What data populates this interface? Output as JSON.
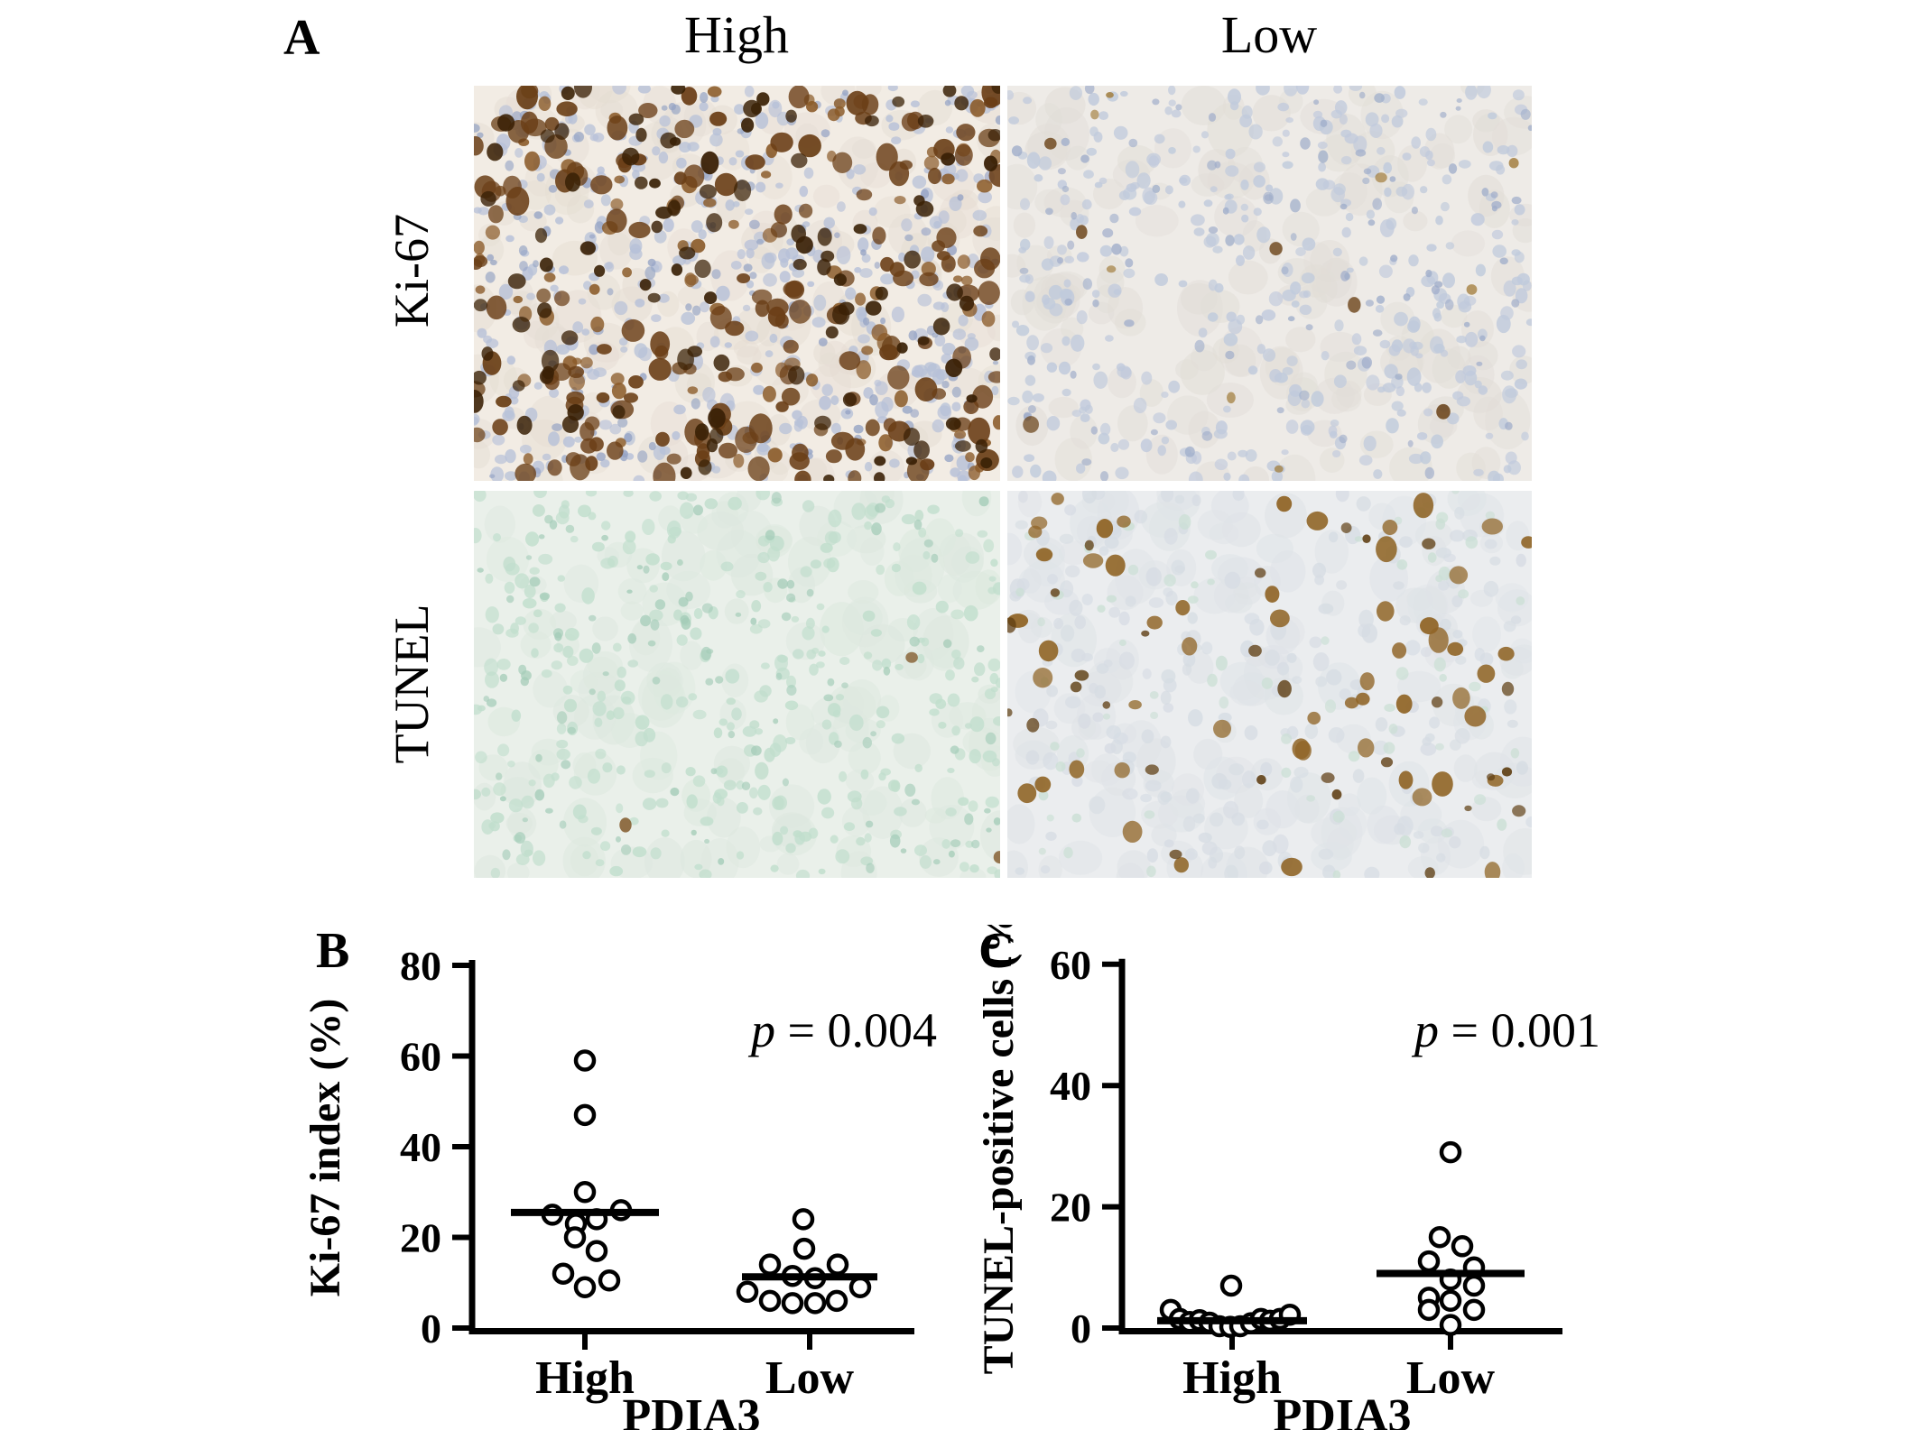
{
  "figure": {
    "panel_a": {
      "label": "A",
      "column_headers": [
        "High",
        "Low"
      ],
      "row_labels": [
        "Ki-67",
        "TUNEL"
      ],
      "micrographs": [
        {
          "id": "ki67-high",
          "row": "Ki-67",
          "column": "High",
          "description": "dense dark-brown Ki-67-positive nuclei with pale blue counterstain",
          "colors": {
            "background": "#f2ece4",
            "positive_stain": "#5a3414",
            "counterstain": "#b7c1d8"
          },
          "texture": {
            "bg": "#f2ece4",
            "seed": 11,
            "layers": [
              {
                "color": "#e4dcd2",
                "count": 150,
                "rmin": 12,
                "rmax": 26,
                "opacity": 0.5
              },
              {
                "color": "#b7c1d8",
                "count": 420,
                "rmin": 4,
                "rmax": 8,
                "opacity": 0.85
              },
              {
                "color": "#93a2c4",
                "count": 120,
                "rmin": 3,
                "rmax": 6,
                "opacity": 0.8
              },
              {
                "color": "#8a5a28",
                "count": 90,
                "rmin": 5,
                "rmax": 9,
                "opacity": 0.9
              },
              {
                "color": "#6b3f17",
                "count": 170,
                "rmin": 7,
                "rmax": 13,
                "opacity": 0.95
              },
              {
                "color": "#3a2106",
                "count": 110,
                "rmin": 6,
                "rmax": 10,
                "opacity": 0.95
              }
            ]
          }
        },
        {
          "id": "ki67-low",
          "row": "Ki-67",
          "column": "Low",
          "description": "sparse Ki-67-positive nuclei, mostly pale blue counterstained cells",
          "colors": {
            "background": "#eeebe7",
            "positive_stain": "#6b4419",
            "counterstain": "#c0cadc"
          },
          "texture": {
            "bg": "#eeebe7",
            "seed": 22,
            "layers": [
              {
                "color": "#e1ddd7",
                "count": 150,
                "rmin": 12,
                "rmax": 26,
                "opacity": 0.55
              },
              {
                "color": "#c0cadc",
                "count": 380,
                "rmin": 4,
                "rmax": 8,
                "opacity": 0.85
              },
              {
                "color": "#9fadca",
                "count": 100,
                "rmin": 3,
                "rmax": 6,
                "opacity": 0.8
              },
              {
                "color": "#a07a37",
                "count": 8,
                "rmin": 4,
                "rmax": 7,
                "opacity": 0.85
              },
              {
                "color": "#6b4419",
                "count": 6,
                "rmin": 6,
                "rmax": 9,
                "opacity": 0.95
              }
            ]
          }
        },
        {
          "id": "tunel-high",
          "row": "TUNEL",
          "column": "High",
          "description": "very few TUNEL-positive cells, pale methyl-green counterstain",
          "colors": {
            "background": "#eaf0ea",
            "positive_stain": "#7b5120",
            "counterstain": "#c1decd"
          },
          "texture": {
            "bg": "#eaf0ea",
            "seed": 33,
            "layers": [
              {
                "color": "#dde8df",
                "count": 150,
                "rmin": 12,
                "rmax": 26,
                "opacity": 0.6
              },
              {
                "color": "#c1decd",
                "count": 330,
                "rmin": 4,
                "rmax": 8,
                "opacity": 0.85
              },
              {
                "color": "#a4ccb8",
                "count": 110,
                "rmin": 3,
                "rmax": 6,
                "opacity": 0.8
              },
              {
                "color": "#7b5120",
                "count": 3,
                "rmin": 5,
                "rmax": 7,
                "opacity": 0.9
              }
            ]
          }
        },
        {
          "id": "tunel-low",
          "row": "TUNEL",
          "column": "Low",
          "description": "many golden-brown TUNEL-positive nuclei on pale blue-gray background",
          "colors": {
            "background": "#ebedef",
            "positive_stain": "#906527",
            "counterstain": "#cadfd4"
          },
          "texture": {
            "bg": "#ebedef",
            "seed": 44,
            "layers": [
              {
                "color": "#dfe3e7",
                "count": 160,
                "rmin": 12,
                "rmax": 26,
                "opacity": 0.6
              },
              {
                "color": "#d6dce3",
                "count": 220,
                "rmin": 5,
                "rmax": 9,
                "opacity": 0.8
              },
              {
                "color": "#cadfd4",
                "count": 70,
                "rmin": 4,
                "rmax": 7,
                "opacity": 0.8
              },
              {
                "color": "#906527",
                "count": 55,
                "rmin": 7,
                "rmax": 12,
                "opacity": 0.95
              },
              {
                "color": "#5d3c10",
                "count": 28,
                "rmin": 4,
                "rmax": 8,
                "opacity": 0.9
              }
            ]
          }
        }
      ]
    },
    "panel_b": {
      "label": "B"
    },
    "panel_c": {
      "label": "C"
    }
  },
  "chart_data": [
    {
      "panel": "B",
      "type": "scatter",
      "title": "",
      "ylabel": "Ki-67 index (%)",
      "xlabel": "PDIA3",
      "categories": [
        "High",
        "Low"
      ],
      "ylim": [
        0,
        80
      ],
      "yticks": [
        0,
        20,
        40,
        60,
        80
      ],
      "grid": false,
      "legend": "none",
      "annotation": "p = 0.004",
      "marker": "open-circle",
      "series": [
        {
          "name": "High",
          "n": 12,
          "median_line": 25.5,
          "points": [
            {
              "v": 59,
              "dx": 0
            },
            {
              "v": 47,
              "dx": 0
            },
            {
              "v": 30,
              "dx": 0
            },
            {
              "v": 26,
              "dx": 40
            },
            {
              "v": 25,
              "dx": -36
            },
            {
              "v": 24,
              "dx": 13
            },
            {
              "v": 23,
              "dx": -10
            },
            {
              "v": 20,
              "dx": -11
            },
            {
              "v": 17,
              "dx": 13
            },
            {
              "v": 12,
              "dx": -24
            },
            {
              "v": 10.5,
              "dx": 27
            },
            {
              "v": 9,
              "dx": 0
            }
          ]
        },
        {
          "name": "Low",
          "n": 12,
          "median_line": 11.3,
          "points": [
            {
              "v": 24,
              "dx": -7
            },
            {
              "v": 17.5,
              "dx": -6
            },
            {
              "v": 14,
              "dx": -44
            },
            {
              "v": 14,
              "dx": 31
            },
            {
              "v": 11.5,
              "dx": -19
            },
            {
              "v": 11,
              "dx": 6
            },
            {
              "v": 9,
              "dx": 56
            },
            {
              "v": 8,
              "dx": -69
            },
            {
              "v": 6,
              "dx": -44
            },
            {
              "v": 5.5,
              "dx": -19
            },
            {
              "v": 5.5,
              "dx": 6
            },
            {
              "v": 6,
              "dx": 30
            }
          ]
        }
      ]
    },
    {
      "panel": "C",
      "type": "scatter",
      "title": "",
      "ylabel": "TUNEL-positive cells (%)",
      "xlabel": "PDIA3",
      "categories": [
        "High",
        "Low"
      ],
      "ylim": [
        0,
        60
      ],
      "yticks": [
        0,
        20,
        40,
        60
      ],
      "grid": false,
      "legend": "none",
      "annotation": "p = 0.001",
      "marker": "open-circle",
      "series": [
        {
          "name": "High",
          "n": 14,
          "median_line": 1.2,
          "points": [
            {
              "v": 7,
              "dx": -1
            },
            {
              "v": 3,
              "dx": -68
            },
            {
              "v": 1.5,
              "dx": -58
            },
            {
              "v": 1,
              "dx": -47
            },
            {
              "v": 1.3,
              "dx": -36
            },
            {
              "v": 0.9,
              "dx": -25
            },
            {
              "v": 0.3,
              "dx": -14
            },
            {
              "v": 0.2,
              "dx": -2
            },
            {
              "v": 0.3,
              "dx": 9
            },
            {
              "v": 0.8,
              "dx": 21
            },
            {
              "v": 1.5,
              "dx": 32
            },
            {
              "v": 1.2,
              "dx": 42
            },
            {
              "v": 1.5,
              "dx": 53
            },
            {
              "v": 2.2,
              "dx": 64
            }
          ]
        },
        {
          "name": "Low",
          "n": 12,
          "median_line": 9,
          "points": [
            {
              "v": 29,
              "dx": 0
            },
            {
              "v": 15,
              "dx": -12
            },
            {
              "v": 13.5,
              "dx": 13
            },
            {
              "v": 11,
              "dx": -24
            },
            {
              "v": 10,
              "dx": 26
            },
            {
              "v": 8,
              "dx": 0
            },
            {
              "v": 7,
              "dx": 26
            },
            {
              "v": 5,
              "dx": -24
            },
            {
              "v": 4.5,
              "dx": 0
            },
            {
              "v": 3,
              "dx": -24
            },
            {
              "v": 3,
              "dx": 26
            },
            {
              "v": 0.5,
              "dx": 0
            }
          ]
        }
      ]
    }
  ]
}
